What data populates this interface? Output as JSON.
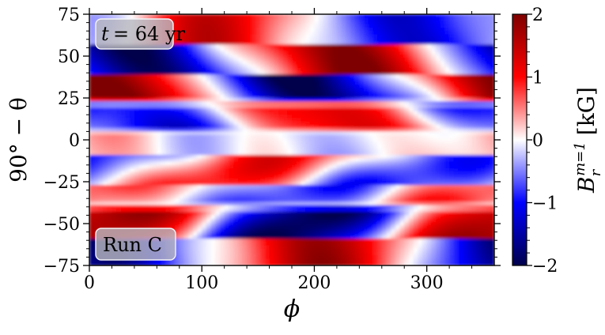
{
  "chart_data": {
    "type": "heatmap",
    "title": "",
    "xlabel": "ϕ",
    "ylabel": "90° − θ",
    "xlim": [
      0,
      360
    ],
    "ylim": [
      -75,
      75
    ],
    "x_ticks": [
      0,
      100,
      200,
      300
    ],
    "x_tick_labels": [
      "0",
      "100",
      "200",
      "300"
    ],
    "y_ticks": [
      -75,
      -50,
      -25,
      0,
      25,
      50,
      75
    ],
    "y_tick_labels": [
      "−75",
      "−50",
      "−25",
      "0",
      "25",
      "50",
      "75"
    ],
    "colorbar": {
      "label": "B_r^{m=1} [kG]",
      "label_main": "B",
      "label_sub": "r",
      "label_sup": "m=1",
      "label_unit": "[kG]",
      "range": [
        -2,
        2
      ],
      "ticks": [
        -2,
        -1,
        0,
        1,
        2
      ],
      "tick_labels": [
        "−2",
        "−1",
        "0",
        "1",
        "2"
      ],
      "colormap": "seismic",
      "colors": [
        "#00004c",
        "#0000ff",
        "#ffffff",
        "#ff0000",
        "#7f0000"
      ]
    },
    "annotations": {
      "time_label": "t = 64 yr",
      "time_symbol": "t",
      "time_value": "= 64 yr",
      "run_label": "Run C"
    },
    "bands": [
      {
        "lat_range": [
          56,
          75
        ],
        "value_at_phi_0": 1.0,
        "phase_speed_deg_per_unit_lat": 0.0
      },
      {
        "lat_range": [
          40,
          60
        ],
        "value_at_phi_0": -1.8,
        "phase_speed_deg_per_unit_lat": 0.0
      },
      {
        "lat_range": [
          22,
          40
        ],
        "value_at_phi_0": 1.8,
        "phase_speed_deg_per_unit_lat": 0.0
      },
      {
        "lat_range": [
          5,
          22
        ],
        "value_at_phi_0": -1.1,
        "phase_speed_deg_per_unit_lat": 0.0
      },
      {
        "lat_range": [
          -10,
          5
        ],
        "value_at_phi_0": 0.3,
        "phase_speed_deg_per_unit_lat": 0.0
      },
      {
        "lat_range": [
          -28,
          -10
        ],
        "value_at_phi_0": -0.9,
        "phase_speed_deg_per_unit_lat": 0.0
      },
      {
        "lat_range": [
          -40,
          -28
        ],
        "value_at_phi_0": 0.8,
        "phase_speed_deg_per_unit_lat": 0.0
      },
      {
        "lat_range": [
          -60,
          -40
        ],
        "value_at_phi_0": 1.9,
        "phase_speed_deg_per_unit_lat": 0.0
      },
      {
        "lat_range": [
          -75,
          -60
        ],
        "value_at_phi_0": -1.6,
        "phase_speed_deg_per_unit_lat": 0.0
      }
    ]
  }
}
